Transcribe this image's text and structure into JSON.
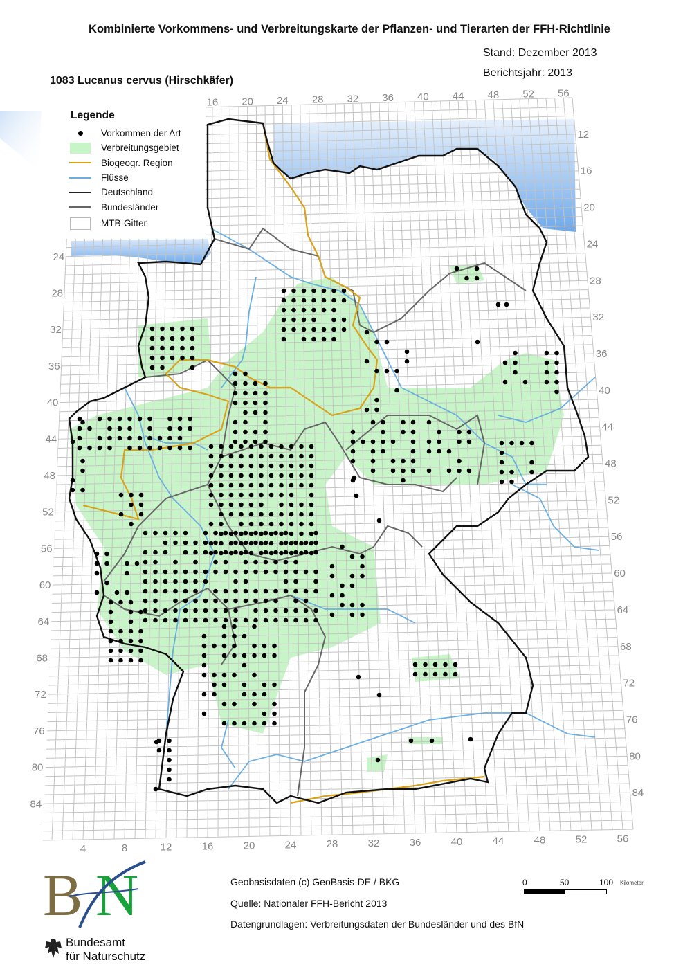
{
  "header": {
    "title": "Kombinierte Vorkommens- und Verbreitungskarte der Pflanzen- und Tierarten der FFH-Richtlinie",
    "stand": "Stand: Dezember 2013",
    "berichtsjahr": "Berichtsjahr: 2013",
    "species": "1083 Lucanus cervus (Hirschkäfer)"
  },
  "legend": {
    "title": "Legende",
    "items": [
      {
        "label": "Vorkommen der Art",
        "symbol": "dot",
        "color": "#000000"
      },
      {
        "label": "Verbreitungsgebiet",
        "symbol": "area",
        "color": "#c8f5c8"
      },
      {
        "label": "Biogeogr. Region",
        "symbol": "line",
        "color": "#d9a21a"
      },
      {
        "label": "Flüsse",
        "symbol": "line",
        "color": "#6aaee0"
      },
      {
        "label": "Deutschland",
        "symbol": "line",
        "color": "#222222"
      },
      {
        "label": "Bundesländer",
        "symbol": "line",
        "color": "#666666"
      },
      {
        "label": "MTB-Gitter",
        "symbol": "box",
        "color": "#bbbbbb"
      }
    ]
  },
  "grid_labels": {
    "top": [
      "16",
      "20",
      "24",
      "28",
      "32",
      "36",
      "40",
      "44",
      "48",
      "52",
      "56"
    ],
    "right": [
      "12",
      "16",
      "20",
      "24",
      "28",
      "32",
      "36",
      "40",
      "44",
      "48",
      "52",
      "56",
      "60",
      "64",
      "68",
      "72",
      "76",
      "80",
      "84"
    ],
    "left": [
      "24",
      "28",
      "32",
      "36",
      "40",
      "44",
      "48",
      "52",
      "56",
      "60",
      "64",
      "68",
      "72",
      "76",
      "80",
      "84"
    ],
    "bottom": [
      "4",
      "8",
      "12",
      "16",
      "20",
      "24",
      "28",
      "32",
      "36",
      "40",
      "44",
      "48",
      "52",
      "56"
    ]
  },
  "colors": {
    "sea": "#7fb6ee",
    "range": "#c8f5c8",
    "biogeo": "#d9a21a",
    "river": "#6aaee0",
    "border": "#111111",
    "states": "#666666",
    "grid": "#c4c4c4"
  },
  "footer": {
    "geobasis": "Geobasisdaten (c) GeoBasis-DE / BKG",
    "quelle": "Quelle: Nationaler FFH-Bericht 2013",
    "daten": "Datengrundlagen: Verbreitungsdaten der Bundesländer und des BfN"
  },
  "scalebar": {
    "ticks": [
      "0",
      "50",
      "100"
    ],
    "unit": "Kilometer"
  },
  "logo": {
    "text": "BfN",
    "line1": "Bundesamt",
    "line2": "für Naturschutz"
  }
}
